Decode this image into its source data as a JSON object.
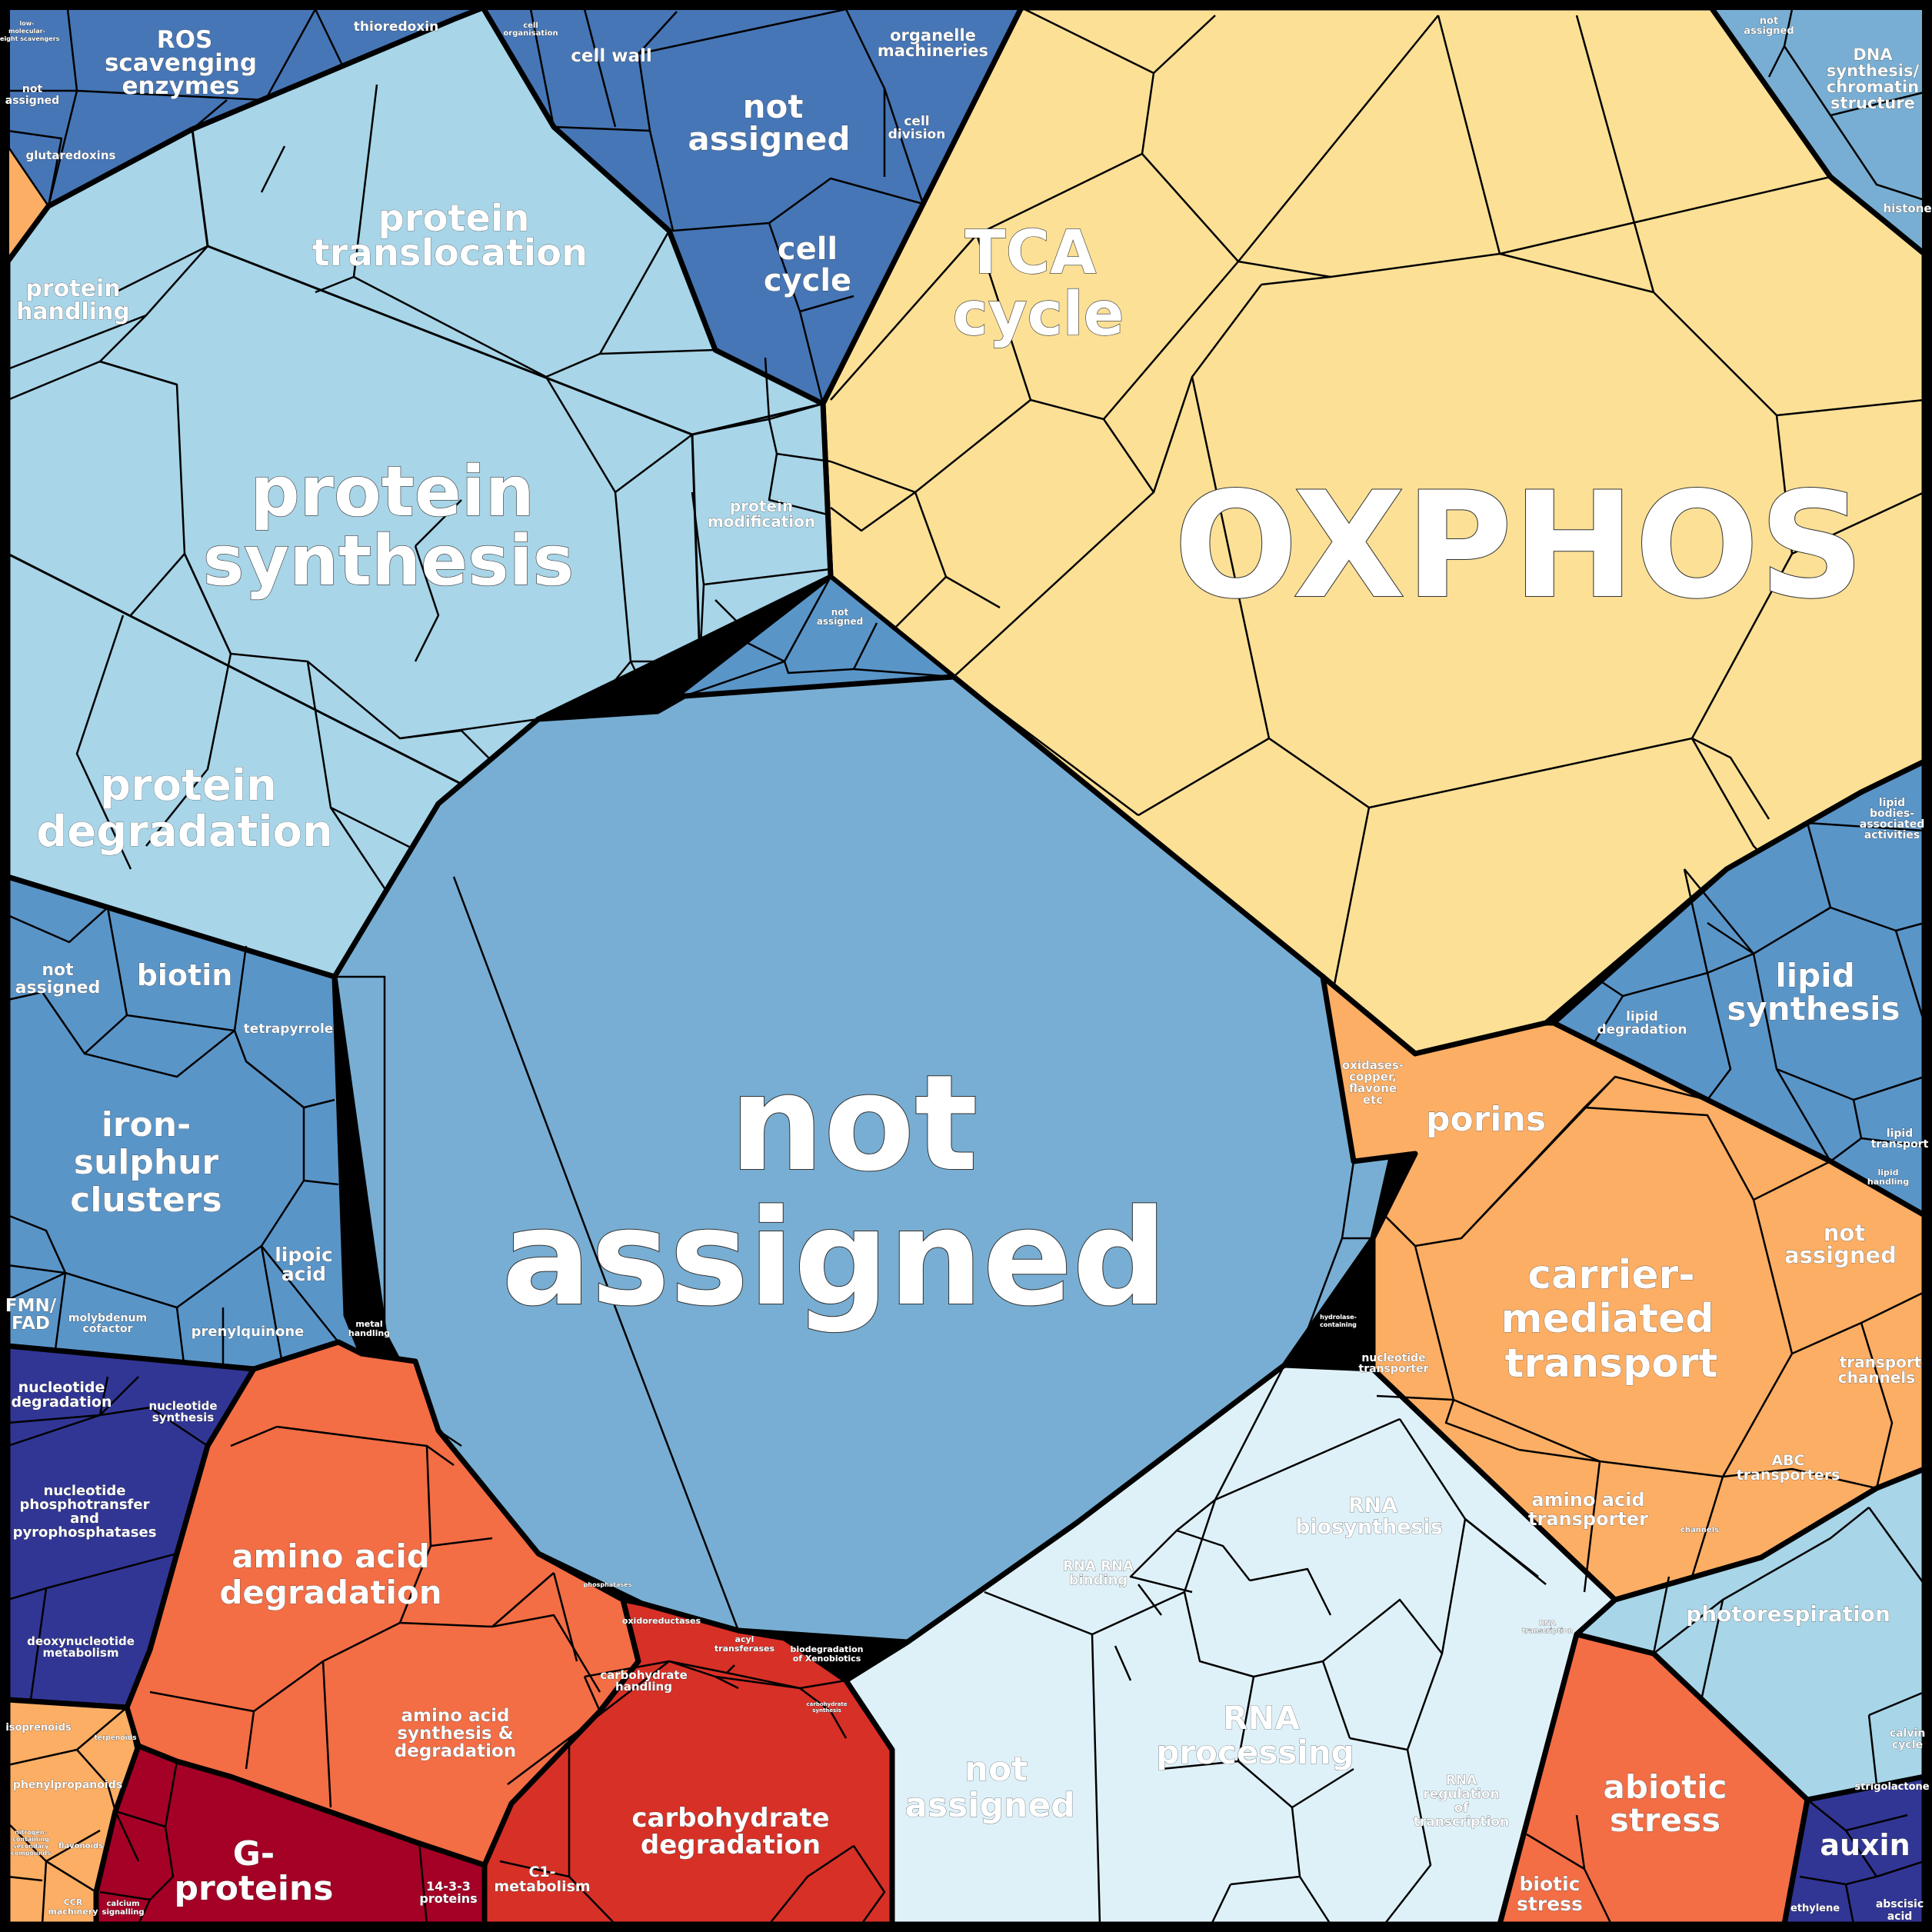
{
  "palette": {
    "yellow": "#fbe096",
    "light_blue": "#a8d5e8",
    "mid_blue": "#78aed3",
    "steel_blue": "#5a95c8",
    "royal_blue": "#4676b6",
    "pale_blue": "#dff1f8",
    "orange": "#fcae64",
    "red_orange": "#f36d45",
    "red": "#d73027",
    "crimson": "#a50026",
    "navy": "#313695",
    "outline": "#000000"
  },
  "labels": {
    "oxphos": "OXPHOS",
    "tca_cycle": "TCA cycle",
    "not_assigned_center": "not assigned",
    "protein_synthesis": "protein synthesis",
    "protein_translocation": "protein translocation",
    "protein_degradation": "protein degradation",
    "protein_handling": "protein handling",
    "protein_modification": "protein modification",
    "ros_scavenging": "ROS scavenging enzymes",
    "thioredoxin": "thioredoxin",
    "glutaredoxins": "glutaredoxins",
    "not_assigned_ros": "not assigned",
    "low_mw_scavengers": "low-molecular-weight scavengers",
    "cell_wall": "cell wall",
    "cell_organisation": "cell organisation",
    "not_assigned_cell": "not assigned",
    "organelle_machineries": "organelle machineries",
    "cell_division": "cell division",
    "cell_cycle": "cell cycle",
    "dna_synthesis": "DNA synthesis/ chromatin structure",
    "not_assigned_dna": "not assigned",
    "histone": "histone",
    "lipid_synthesis": "lipid synthesis",
    "lipid_degradation": "lipid degradation",
    "lipid_bodies": "lipid bodies-associated activities",
    "lipid_transport": "lipid transport",
    "lipid_handling": "lipid handling",
    "porins": "porins",
    "carrier_mediated_transport": "carrier-mediated transport",
    "not_assigned_transport": "not assigned",
    "transport_channels": "transport channels",
    "abc_transporters": "ABC transporters",
    "amino_acid_transporter": "amino acid transporter",
    "nucleotide_transporter": "nucleotide transporter",
    "channels": "channels",
    "photorespiration": "photorespiration",
    "calvin_cycle": "calvin cycle",
    "abiotic_stress": "abiotic stress",
    "biotic_stress": "biotic stress",
    "auxin": "auxin",
    "strigolactone": "strigolactone",
    "ethylene": "ethylene",
    "abscisic_acid": "abscisic acid",
    "rna_biosynthesis": "RNA biosynthesis",
    "rna_binding": "RNA RNA binding",
    "rna_processing": "RNA processing",
    "rna_regulation": "RNA regulation of transcription",
    "rna_transcription": "RNA transcription",
    "not_assigned_rna": "not assigned",
    "carbohydrate_degradation": "carbohydrate degradation",
    "carbohydrate_handling": "carbohydrate handling",
    "carbohydrate_synthesis": "carbohydrate synthesis",
    "c1_metabolism": "C1-metabolism",
    "g_proteins": "G-proteins",
    "proteins_1433": "14-3-3 proteins",
    "calcium_signalling": "calcium signalling",
    "amino_acid_degradation": "amino acid degradation",
    "amino_acid_synthesis": "amino acid synthesis & degradation",
    "nucleotide_degradation": "nucleotide degradation",
    "nucleotide_synthesis": "nucleotide synthesis",
    "nucleotide_phosphotransfer": "nucleotide phosphotransfer and pyrophosphatases",
    "deoxynucleotide_metabolism": "deoxynucleotide metabolism",
    "isoprenoids": "isoprenoids",
    "terpenoids": "terpenoids",
    "phenylpropanoids": "phenylpropanoids",
    "flavonoids": "flavonoids",
    "nitrogen_compounds": "nitrogen-containing secondary compounds",
    "cc_machinery": "CCR machinery",
    "biotin": "biotin",
    "not_assigned_cof": "not assigned",
    "tetrapyrrole": "tetrapyrrole",
    "iron_sulphur": "iron-sulphur clusters",
    "lipoic_acid": "lipoic acid",
    "fmn_fad": "FMN/ FAD",
    "molybdenum_cofactor": "molybdenum cofactor",
    "prenylquinone": "prenylquinone",
    "metal_handling": "metal handling",
    "oxidoreductases": "oxidoreductases",
    "acyl_transferases": "acyl transferases",
    "biodegradation": "biodegradation of Xenobiotics",
    "phosphatases": "phosphatases",
    "not_assigned_top": "not assigned",
    "oxidases": "oxidases-copper, flavone etc",
    "hydrolase": "hydrolase-containing"
  }
}
